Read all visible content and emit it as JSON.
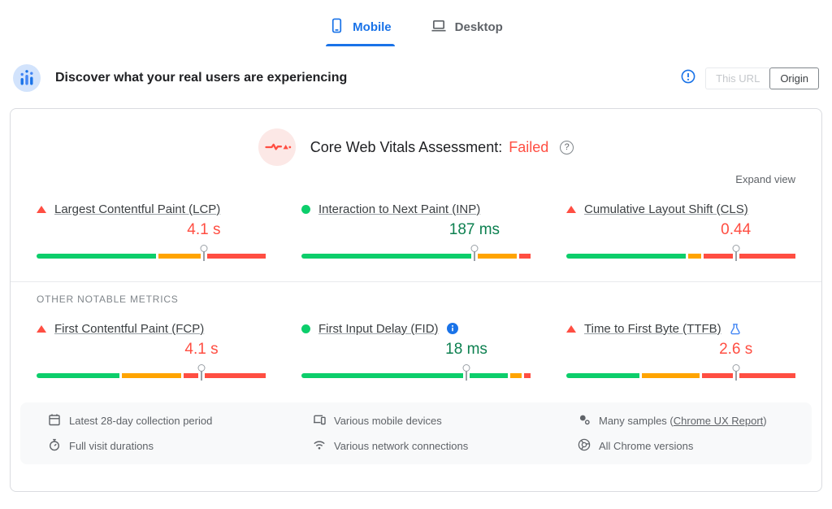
{
  "device_tabs": {
    "mobile": "Mobile",
    "desktop": "Desktop"
  },
  "field_section": {
    "title": "Discover what your real users are experiencing",
    "scope_toggle": {
      "this_url": "This URL",
      "origin": "Origin"
    }
  },
  "assessment": {
    "title": "Core Web Vitals Assessment:",
    "status": "Failed",
    "help_glyph": "?"
  },
  "expand_view_label": "Expand view",
  "other_metrics_label": "OTHER NOTABLE METRICS",
  "metrics": {
    "core": [
      {
        "id": "lcp",
        "label": "Largest Contentful Paint (LCP)",
        "status": "poor",
        "value": "4.1 s",
        "marker_pct": 73,
        "segments": [
          {
            "color": "good",
            "pct": 52
          },
          {
            "color": "average",
            "pct": 21
          },
          {
            "color": "poor",
            "pct": 27
          }
        ]
      },
      {
        "id": "inp",
        "label": "Interaction to Next Paint (INP)",
        "status": "good",
        "value": "187 ms",
        "marker_pct": 75.5,
        "segments": [
          {
            "color": "good",
            "pct": 75
          },
          {
            "color": "average",
            "pct": 19
          },
          {
            "color": "poor",
            "pct": 6
          }
        ]
      },
      {
        "id": "cls",
        "label": "Cumulative Layout Shift (CLS)",
        "status": "poor",
        "value": "0.44",
        "marker_pct": 74,
        "segments": [
          {
            "color": "good",
            "pct": 52
          },
          {
            "color": "average",
            "pct": 7
          },
          {
            "color": "poor",
            "pct": 41
          }
        ]
      }
    ],
    "other": [
      {
        "id": "fcp",
        "label": "First Contentful Paint (FCP)",
        "status": "poor",
        "value": "4.1 s",
        "marker_pct": 72,
        "segments": [
          {
            "color": "good",
            "pct": 36
          },
          {
            "color": "average",
            "pct": 27
          },
          {
            "color": "poor",
            "pct": 37
          }
        ]
      },
      {
        "id": "fid",
        "label": "First Input Delay (FID)",
        "status": "good",
        "value": "18 ms",
        "badge": "info",
        "marker_pct": 72,
        "segments": [
          {
            "color": "good",
            "pct": 90
          },
          {
            "color": "average",
            "pct": 6
          },
          {
            "color": "poor",
            "pct": 4
          }
        ]
      },
      {
        "id": "ttfb",
        "label": "Time to First Byte (TTFB)",
        "status": "poor",
        "value": "2.6 s",
        "badge": "flask",
        "marker_pct": 74,
        "segments": [
          {
            "color": "good",
            "pct": 32
          },
          {
            "color": "average",
            "pct": 26
          },
          {
            "color": "poor",
            "pct": 42
          }
        ]
      }
    ]
  },
  "footer": {
    "collection": [
      {
        "icon": "calendar-icon",
        "text": "Latest 28-day collection period"
      },
      {
        "icon": "stopwatch-icon",
        "text": "Full visit durations"
      }
    ],
    "devices": [
      {
        "icon": "devices-icon",
        "text": "Various mobile devices"
      },
      {
        "icon": "network-icon",
        "text": "Various network connections"
      }
    ],
    "samples": [
      {
        "icon": "samples-icon",
        "prefix": "Many samples (",
        "link": "Chrome UX Report",
        "suffix": ")"
      },
      {
        "icon": "chrome-icon",
        "text": "All Chrome versions"
      }
    ]
  },
  "colors": {
    "good": "#0cce6b",
    "average": "#ffa400",
    "poor": "#ff4e42",
    "good_text": "#0d8050",
    "poor_text": "#ff4e42",
    "accent": "#1a73e8"
  }
}
